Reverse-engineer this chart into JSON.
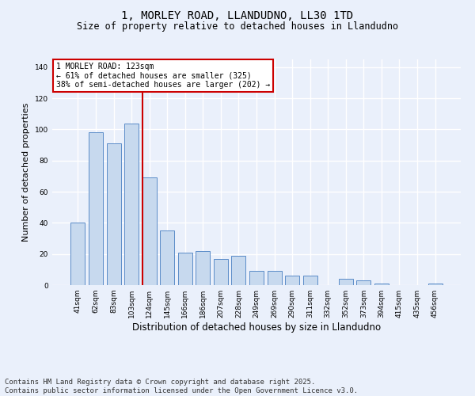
{
  "title_line1": "1, MORLEY ROAD, LLANDUDNO, LL30 1TD",
  "title_line2": "Size of property relative to detached houses in Llandudno",
  "xlabel": "Distribution of detached houses by size in Llandudno",
  "ylabel": "Number of detached properties",
  "categories": [
    "41sqm",
    "62sqm",
    "83sqm",
    "103sqm",
    "124sqm",
    "145sqm",
    "166sqm",
    "186sqm",
    "207sqm",
    "228sqm",
    "249sqm",
    "269sqm",
    "290sqm",
    "311sqm",
    "332sqm",
    "352sqm",
    "373sqm",
    "394sqm",
    "415sqm",
    "435sqm",
    "456sqm"
  ],
  "values": [
    40,
    98,
    91,
    104,
    69,
    35,
    21,
    22,
    17,
    19,
    9,
    9,
    6,
    6,
    0,
    4,
    3,
    1,
    0,
    0,
    1
  ],
  "bar_color": "#c7d9ee",
  "bar_edge_color": "#5b8cc8",
  "reference_line_index": 4,
  "reference_line_color": "#cc0000",
  "annotation_text": "1 MORLEY ROAD: 123sqm\n← 61% of detached houses are smaller (325)\n38% of semi-detached houses are larger (202) →",
  "annotation_box_color": "#ffffff",
  "annotation_box_edge_color": "#cc0000",
  "ylim": [
    0,
    145
  ],
  "yticks": [
    0,
    20,
    40,
    60,
    80,
    100,
    120,
    140
  ],
  "background_color": "#eaf0fb",
  "grid_color": "#ffffff",
  "footer_line1": "Contains HM Land Registry data © Crown copyright and database right 2025.",
  "footer_line2": "Contains public sector information licensed under the Open Government Licence v3.0.",
  "title_fontsize": 10,
  "subtitle_fontsize": 8.5,
  "tick_fontsize": 6.5,
  "ylabel_fontsize": 8,
  "xlabel_fontsize": 8.5,
  "annotation_fontsize": 7,
  "footer_fontsize": 6.5
}
